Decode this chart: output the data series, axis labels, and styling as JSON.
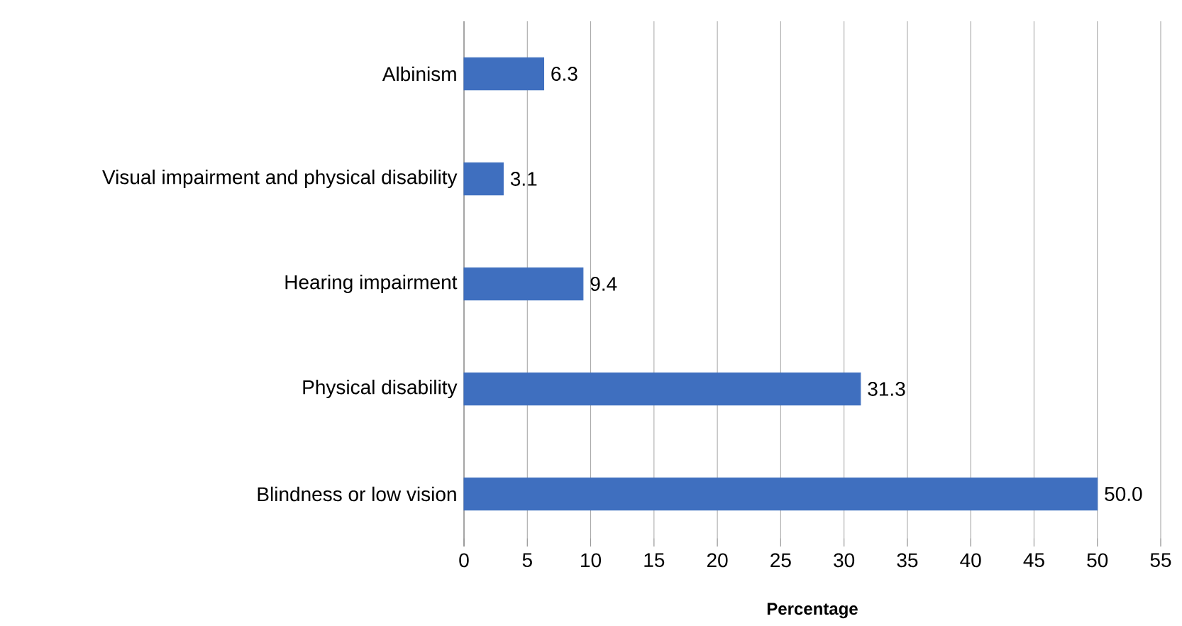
{
  "chart_data": {
    "type": "bar",
    "orientation": "horizontal",
    "xlabel": "Percentage",
    "categories": [
      "Albinism",
      "Visual impairment and physical disability",
      "Hearing impairment",
      "Physical disability",
      "Blindness or low vision"
    ],
    "values": [
      6.3,
      3.1,
      9.4,
      31.3,
      50.0
    ],
    "value_labels": [
      "6.3",
      "3.1",
      "9.4",
      "31.3",
      "50.0"
    ],
    "color": "#3f6fbf",
    "xlim": [
      0,
      55
    ],
    "xticks": [
      0,
      5,
      10,
      15,
      20,
      25,
      30,
      35,
      40,
      45,
      50,
      55
    ],
    "grid": "x"
  }
}
